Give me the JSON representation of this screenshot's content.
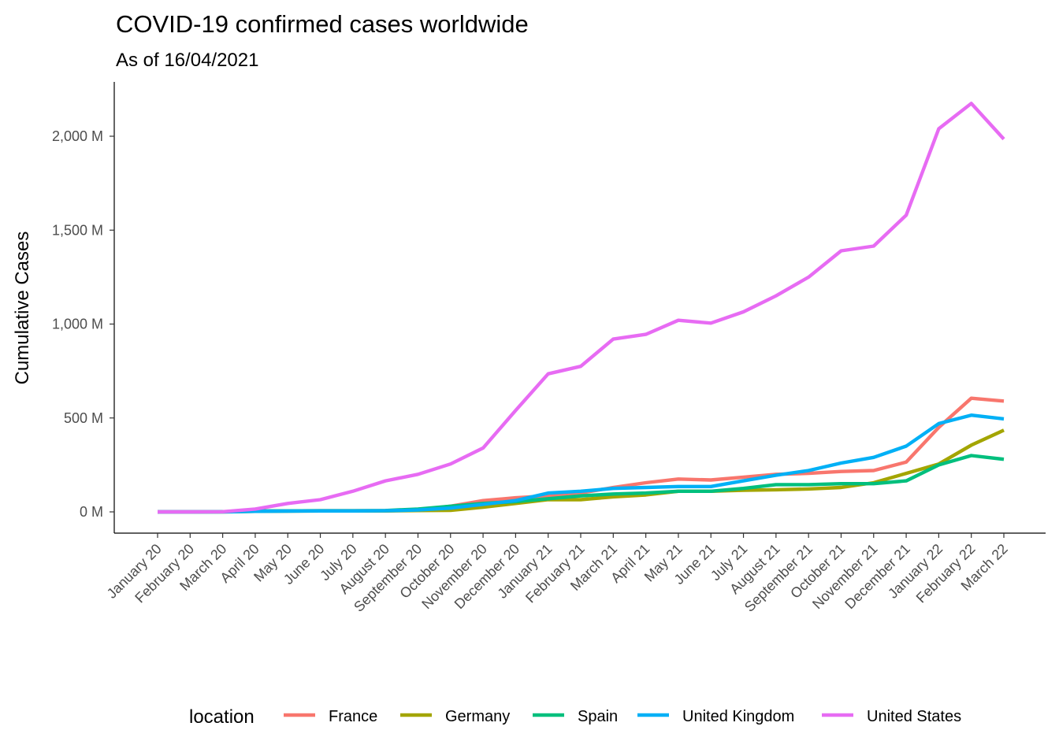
{
  "chart_data": {
    "type": "line",
    "title": "COVID-19 confirmed cases worldwide",
    "subtitle": "As of 16/04/2021",
    "xlabel": "",
    "ylabel": "Cumulative Cases",
    "ylim": [
      0,
      2290
    ],
    "yticks": [
      0,
      500,
      1000,
      1500,
      2000
    ],
    "ytick_labels": [
      "0 M",
      "500 M",
      "1,000 M",
      "1,500 M",
      "2,000 M"
    ],
    "grid": false,
    "legend": {
      "title": "location",
      "position": "bottom"
    },
    "categories": [
      "January 20",
      "February 20",
      "March 20",
      "April 20",
      "May 20",
      "June 20",
      "July 20",
      "August 20",
      "September 20",
      "October 20",
      "November 20",
      "December 20",
      "January 21",
      "February 21",
      "March 21",
      "April 21",
      "May 21",
      "June 21",
      "July 21",
      "August 21",
      "September 21",
      "October 21",
      "November 21",
      "December 21",
      "January 22",
      "February 22",
      "March 22"
    ],
    "series": [
      {
        "name": "France",
        "color": "#F8766D",
        "values": [
          0,
          0,
          1,
          5,
          5,
          6,
          6,
          6,
          10,
          30,
          60,
          75,
          85,
          100,
          130,
          155,
          175,
          170,
          185,
          200,
          205,
          215,
          220,
          265,
          450,
          605,
          590
        ]
      },
      {
        "name": "Germany",
        "color": "#A3A500",
        "values": [
          0,
          0,
          0,
          3,
          4,
          5,
          5,
          5,
          7,
          8,
          25,
          45,
          65,
          65,
          80,
          90,
          110,
          110,
          115,
          118,
          122,
          130,
          155,
          205,
          255,
          355,
          435
        ]
      },
      {
        "name": "Spain",
        "color": "#00BF7D",
        "values": [
          0,
          0,
          1,
          5,
          5,
          6,
          6,
          7,
          15,
          30,
          45,
          55,
          70,
          85,
          95,
          100,
          110,
          110,
          125,
          145,
          145,
          150,
          150,
          165,
          250,
          300,
          280
        ]
      },
      {
        "name": "United Kingdom",
        "color": "#00B0F6",
        "values": [
          0,
          0,
          0,
          3,
          4,
          5,
          5,
          6,
          10,
          20,
          40,
          60,
          100,
          110,
          125,
          130,
          135,
          135,
          165,
          195,
          220,
          260,
          290,
          350,
          470,
          515,
          495
        ]
      },
      {
        "name": "United States",
        "color": "#E76BF3",
        "values": [
          0,
          0,
          1,
          15,
          45,
          65,
          110,
          165,
          200,
          255,
          340,
          540,
          735,
          775,
          920,
          945,
          1020,
          1005,
          1065,
          1150,
          1250,
          1390,
          1415,
          1580,
          2040,
          2175,
          1985
        ]
      }
    ]
  }
}
